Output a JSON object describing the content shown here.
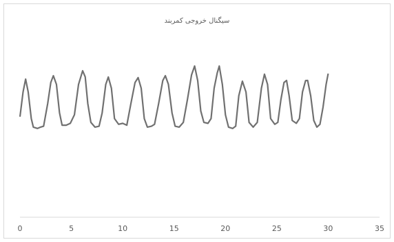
{
  "chart_data": {
    "type": "line",
    "title": "سیگنال خروجی کمربند",
    "x": [
      0,
      0.3,
      0.55,
      0.8,
      1.1,
      1.3,
      1.7,
      2.0,
      2.3,
      2.7,
      3.0,
      3.25,
      3.55,
      3.85,
      4.1,
      4.5,
      4.9,
      5.3,
      5.7,
      6.1,
      6.35,
      6.6,
      6.9,
      7.3,
      7.7,
      8.0,
      8.35,
      8.6,
      8.9,
      9.2,
      9.6,
      10.0,
      10.4,
      10.8,
      11.2,
      11.5,
      11.8,
      12.1,
      12.4,
      12.8,
      13.1,
      13.5,
      13.9,
      14.15,
      14.45,
      14.8,
      15.1,
      15.5,
      15.9,
      16.3,
      16.7,
      17.0,
      17.3,
      17.6,
      17.9,
      18.3,
      18.6,
      18.9,
      19.2,
      19.4,
      19.7,
      20.0,
      20.3,
      20.7,
      21.0,
      21.3,
      21.65,
      22.0,
      22.3,
      22.7,
      23.1,
      23.5,
      23.8,
      24.1,
      24.4,
      24.8,
      25.1,
      25.4,
      25.7,
      25.95,
      26.2,
      26.5,
      26.9,
      27.2,
      27.5,
      27.8,
      28.0,
      28.3,
      28.6,
      28.9,
      29.2,
      29.5,
      29.8,
      30.0
    ],
    "values": [
      53,
      66,
      72.8,
      66,
      52,
      47.5,
      46.8,
      47.5,
      48,
      60,
      71,
      74.6,
      70,
      55,
      48.5,
      48.5,
      49.5,
      54,
      70,
      77.2,
      74,
      60,
      50,
      47.5,
      48,
      55,
      70,
      73.9,
      68,
      52,
      49,
      49.5,
      48.5,
      60,
      71,
      73.6,
      68,
      52,
      47.5,
      48,
      49,
      60,
      72,
      74.6,
      70,
      55,
      48,
      47.5,
      50,
      62,
      75,
      79.7,
      72,
      56,
      50,
      49.5,
      52,
      68,
      76,
      79.7,
      70,
      54,
      47.5,
      46.8,
      48,
      64,
      71.7,
      66,
      50,
      47.5,
      50,
      68,
      75.4,
      70,
      52,
      49,
      50,
      62,
      71,
      72.1,
      64,
      51,
      49.5,
      52,
      66,
      72,
      72.1,
      64,
      51,
      47.5,
      49,
      58,
      70,
      75.7
    ],
    "color": "#707070",
    "xlim": [
      0,
      35
    ],
    "xticks": [
      0,
      5,
      10,
      15,
      20,
      25,
      30,
      35
    ],
    "ylim": [
      0,
      100
    ]
  }
}
